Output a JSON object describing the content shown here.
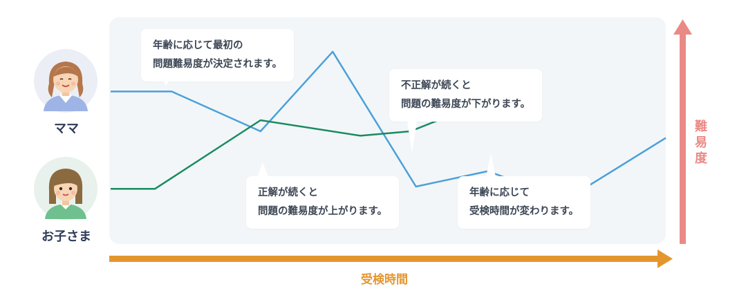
{
  "people": {
    "mother": {
      "label": "ママ",
      "line_color": "#4aa0d9"
    },
    "child": {
      "label": "お子さま",
      "line_color": "#1a8a60"
    }
  },
  "axes": {
    "y": {
      "label_chars": [
        "難",
        "易",
        "度"
      ],
      "color": "#ea8a86"
    },
    "x": {
      "label": "受検時間",
      "color": "#e4962e"
    }
  },
  "callouts": {
    "initial": {
      "lines": [
        "年齢に応じて最初の",
        "問題難易度が決定されます。"
      ]
    },
    "down": {
      "lines": [
        "不正解が続くと",
        "問題の難易度が下がります。"
      ]
    },
    "up": {
      "lines": [
        "正解が続くと",
        "問題の難易度が上がります。"
      ]
    },
    "time": {
      "lines": [
        "年齢に応じて",
        "受検時間が変わります。"
      ]
    }
  },
  "chart_data": {
    "type": "line",
    "xlabel": "受検時間",
    "ylabel": "難易度",
    "series": [
      {
        "name": "ママ",
        "segments": [
          [
            [
              0,
              68
            ],
            [
              11,
              68
            ],
            [
              27,
              50
            ],
            [
              40,
              86
            ],
            [
              55,
              25
            ],
            [
              68,
              32
            ]
          ],
          [
            [
              69,
              31
            ],
            [
              82,
              19
            ],
            [
              100,
              47
            ]
          ]
        ]
      },
      {
        "name": "お子さま",
        "segments": [
          [
            [
              0,
              24
            ],
            [
              8,
              24
            ],
            [
              27,
              55
            ],
            [
              45,
              48
            ],
            [
              54,
              50
            ],
            [
              68,
              64
            ]
          ]
        ]
      }
    ]
  }
}
